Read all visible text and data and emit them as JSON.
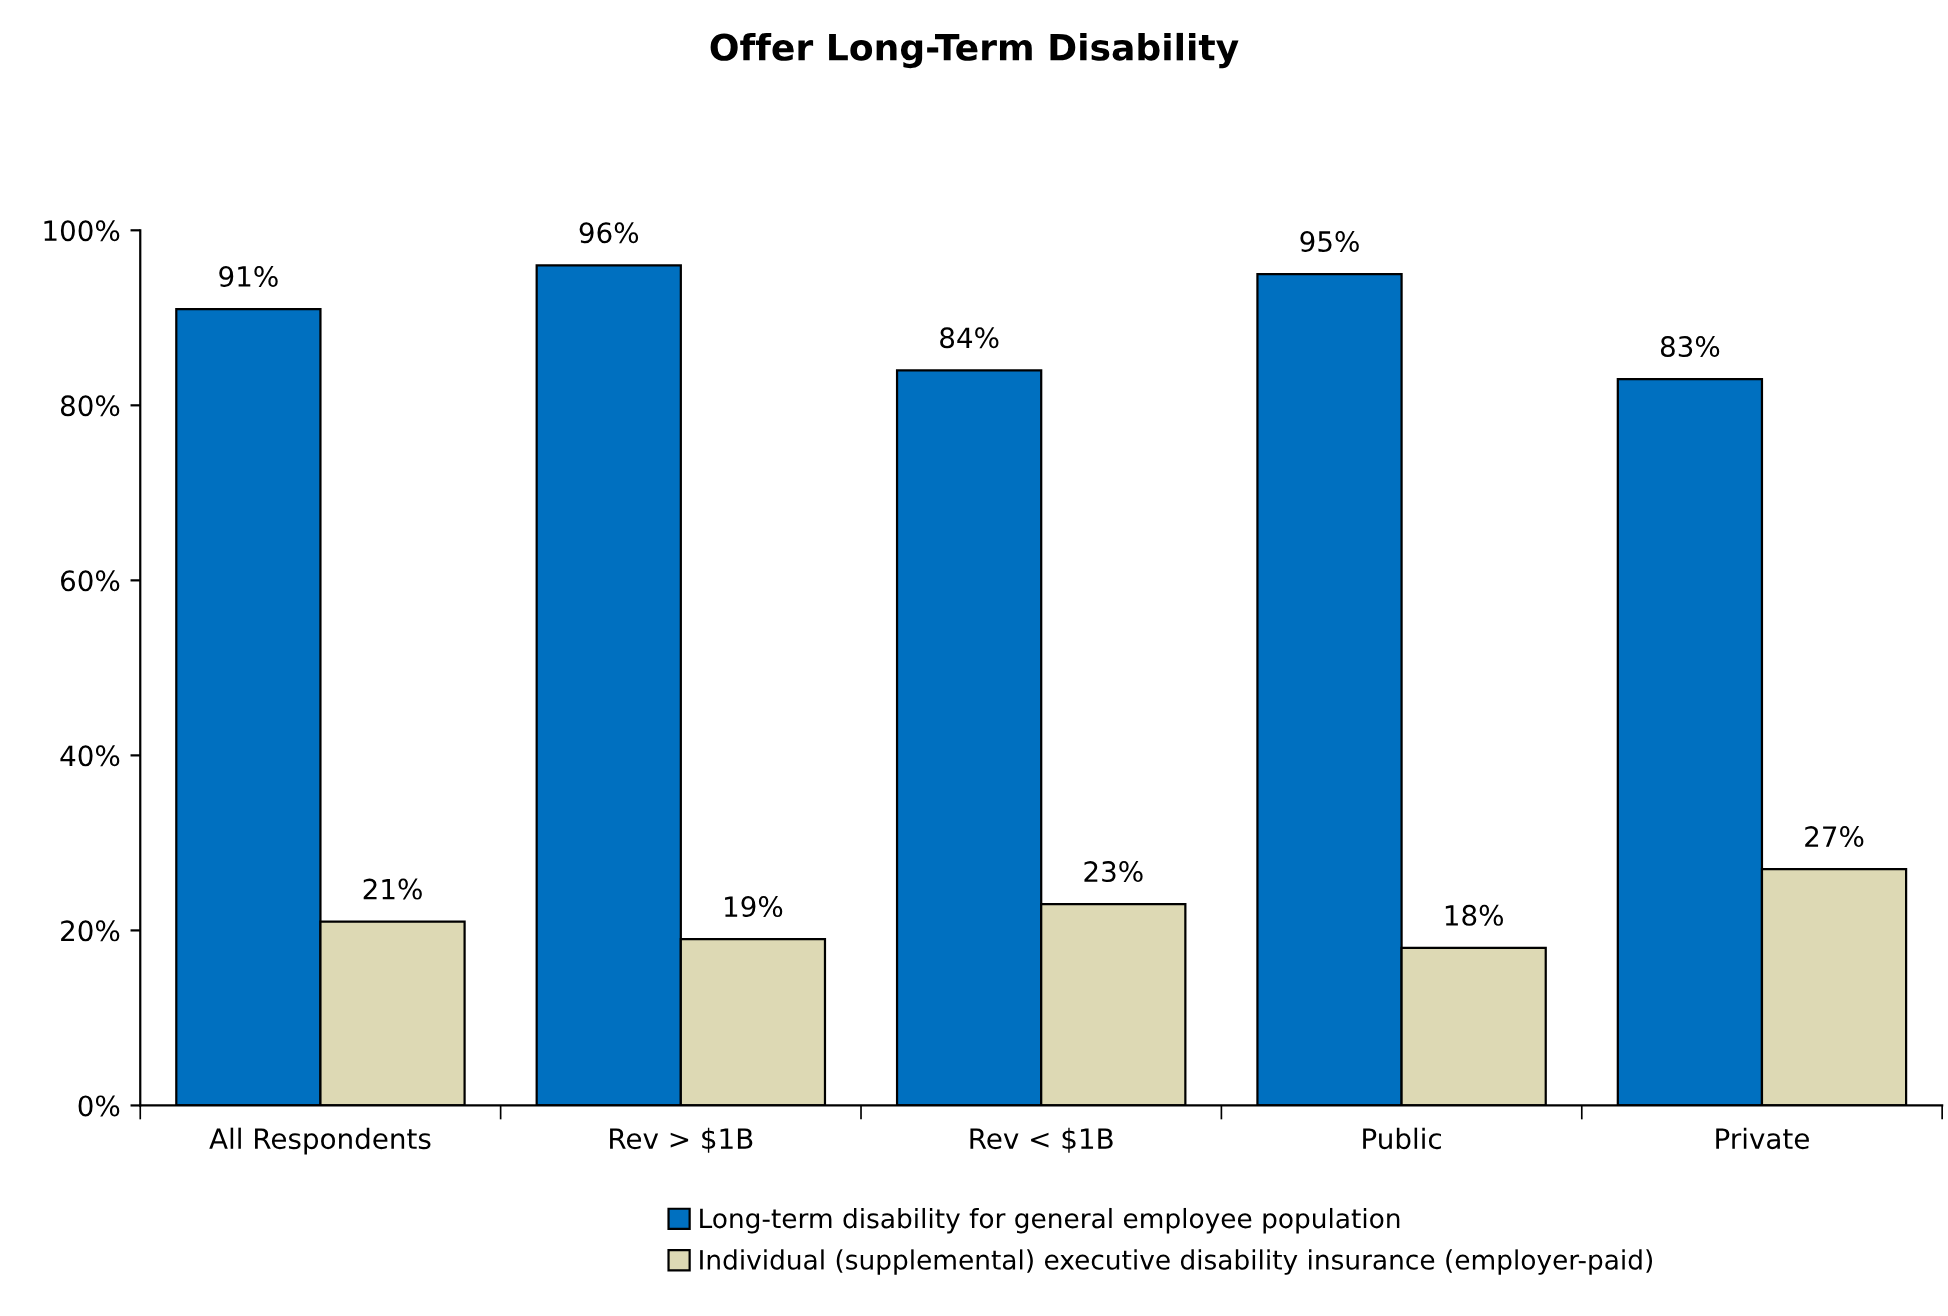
{
  "chart_data": {
    "type": "bar",
    "title": "Offer Long-Term Disability",
    "categories": [
      "All Respondents",
      "Rev > $1B",
      "Rev < $1B",
      "Public",
      "Private"
    ],
    "series": [
      {
        "name": "Long-term disability for general employee population",
        "color": "#0070c0",
        "values": [
          91,
          96,
          84,
          95,
          83
        ],
        "value_labels": [
          "91%",
          "96%",
          "84%",
          "95%",
          "83%"
        ]
      },
      {
        "name": "Individual (supplemental) executive disability insurance (employer-paid)",
        "color": "#ddd9b4",
        "values": [
          21,
          19,
          23,
          18,
          27
        ],
        "value_labels": [
          "21%",
          "19%",
          "23%",
          "18%",
          "27%"
        ]
      }
    ],
    "ylim": [
      0,
      100
    ],
    "yticks": [
      {
        "value": 0,
        "label": "0%"
      },
      {
        "value": 20,
        "label": "20%"
      },
      {
        "value": 40,
        "label": "40%"
      },
      {
        "value": 60,
        "label": "60%"
      },
      {
        "value": 80,
        "label": "80%"
      },
      {
        "value": 100,
        "label": "100%"
      }
    ],
    "grid": false,
    "legend": "bottom"
  }
}
